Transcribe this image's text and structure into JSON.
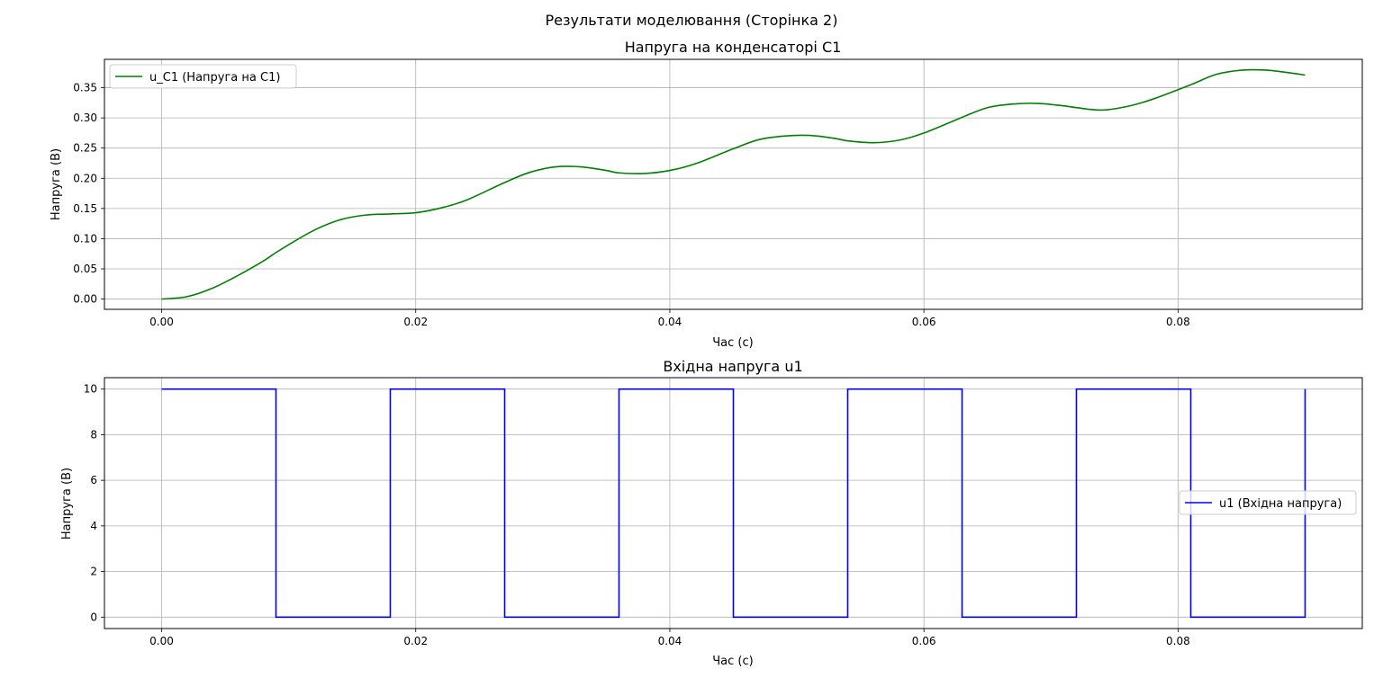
{
  "figure": {
    "suptitle": "Результати моделювання (Сторінка 2)"
  },
  "chart_data": [
    {
      "type": "line",
      "title": "Напруга на конденсаторі C1",
      "xlabel": "Час (с)",
      "ylabel": "Напруга (В)",
      "xlim": [
        -0.0045,
        0.0945
      ],
      "ylim": [
        -0.017,
        0.397
      ],
      "xticks": [
        0.0,
        0.02,
        0.04,
        0.06,
        0.08
      ],
      "xtick_labels": [
        "0.00",
        "0.02",
        "0.04",
        "0.06",
        "0.08"
      ],
      "yticks": [
        0.0,
        0.05,
        0.1,
        0.15,
        0.2,
        0.25,
        0.3,
        0.35
      ],
      "ytick_labels": [
        "0.00",
        "0.05",
        "0.10",
        "0.15",
        "0.20",
        "0.25",
        "0.30",
        "0.35"
      ],
      "grid": true,
      "legend_position": "upper-left",
      "series": [
        {
          "name": "u_C1 (Напруга на C1)",
          "color": "#008000",
          "x": [
            0.0,
            0.002,
            0.004,
            0.006,
            0.008,
            0.009,
            0.01,
            0.012,
            0.014,
            0.016,
            0.018,
            0.02,
            0.022,
            0.024,
            0.027,
            0.029,
            0.031,
            0.033,
            0.035,
            0.036,
            0.038,
            0.04,
            0.042,
            0.045,
            0.047,
            0.049,
            0.051,
            0.053,
            0.054,
            0.056,
            0.058,
            0.06,
            0.063,
            0.065,
            0.067,
            0.069,
            0.071,
            0.072,
            0.074,
            0.076,
            0.078,
            0.081,
            0.083,
            0.085,
            0.087,
            0.089,
            0.09
          ],
          "y": [
            0.0,
            0.004,
            0.018,
            0.039,
            0.063,
            0.077,
            0.09,
            0.114,
            0.131,
            0.139,
            0.141,
            0.143,
            0.151,
            0.164,
            0.193,
            0.21,
            0.219,
            0.219,
            0.213,
            0.209,
            0.208,
            0.213,
            0.224,
            0.249,
            0.264,
            0.27,
            0.271,
            0.266,
            0.262,
            0.259,
            0.263,
            0.275,
            0.301,
            0.317,
            0.323,
            0.324,
            0.32,
            0.317,
            0.313,
            0.319,
            0.331,
            0.355,
            0.372,
            0.379,
            0.379,
            0.374,
            0.371
          ]
        }
      ]
    },
    {
      "type": "line",
      "title": "Вхідна напруга u1",
      "xlabel": "Час (с)",
      "ylabel": "Напруга (В)",
      "xlim": [
        -0.0045,
        0.0945
      ],
      "ylim": [
        -0.5,
        10.5
      ],
      "xticks": [
        0.0,
        0.02,
        0.04,
        0.06,
        0.08
      ],
      "xtick_labels": [
        "0.00",
        "0.02",
        "0.04",
        "0.06",
        "0.08"
      ],
      "yticks": [
        0,
        2,
        4,
        6,
        8,
        10
      ],
      "ytick_labels": [
        "0",
        "2",
        "4",
        "6",
        "8",
        "10"
      ],
      "grid": true,
      "legend_position": "center-right",
      "series": [
        {
          "name": "u1 (Вхідна напруга)",
          "color": "#0000ff",
          "x": [
            0.0,
            0.009,
            0.009,
            0.018,
            0.018,
            0.027,
            0.027,
            0.036,
            0.036,
            0.045,
            0.045,
            0.054,
            0.054,
            0.063,
            0.063,
            0.072,
            0.072,
            0.081,
            0.081,
            0.09,
            0.09
          ],
          "y": [
            10,
            10,
            0,
            0,
            10,
            10,
            0,
            0,
            10,
            10,
            0,
            0,
            10,
            10,
            0,
            0,
            10,
            10,
            0,
            0,
            10
          ]
        }
      ]
    }
  ]
}
